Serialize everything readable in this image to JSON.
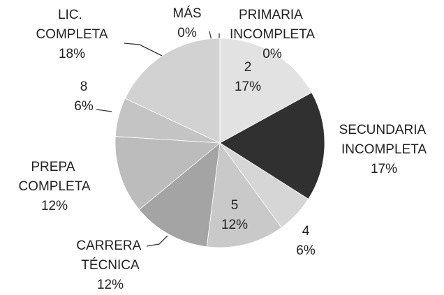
{
  "chart_data": {
    "type": "pie",
    "categories": [
      "PRIMARIA INCOMPLETA",
      "2",
      "SECUNDARIA INCOMPLETA",
      "4",
      "5",
      "CARRERA TÉCNICA",
      "PREPA COMPLETA",
      "8",
      "LIC. COMPLETA",
      "MÁS"
    ],
    "values": [
      0,
      17,
      17,
      6,
      12,
      12,
      12,
      6,
      18,
      0
    ],
    "value_labels": [
      "0%",
      "17%",
      "17%",
      "6%",
      "12%",
      "12%",
      "12%",
      "6%",
      "18%",
      "0%"
    ],
    "colors": [
      "#dcdcdc",
      "#e2e2e2",
      "#303030",
      "#d6d6d6",
      "#c9c9c9",
      "#a4a4a4",
      "#bcbcbc",
      "#c4c4c4",
      "#d2d2d2",
      "#dcdcdc"
    ]
  }
}
